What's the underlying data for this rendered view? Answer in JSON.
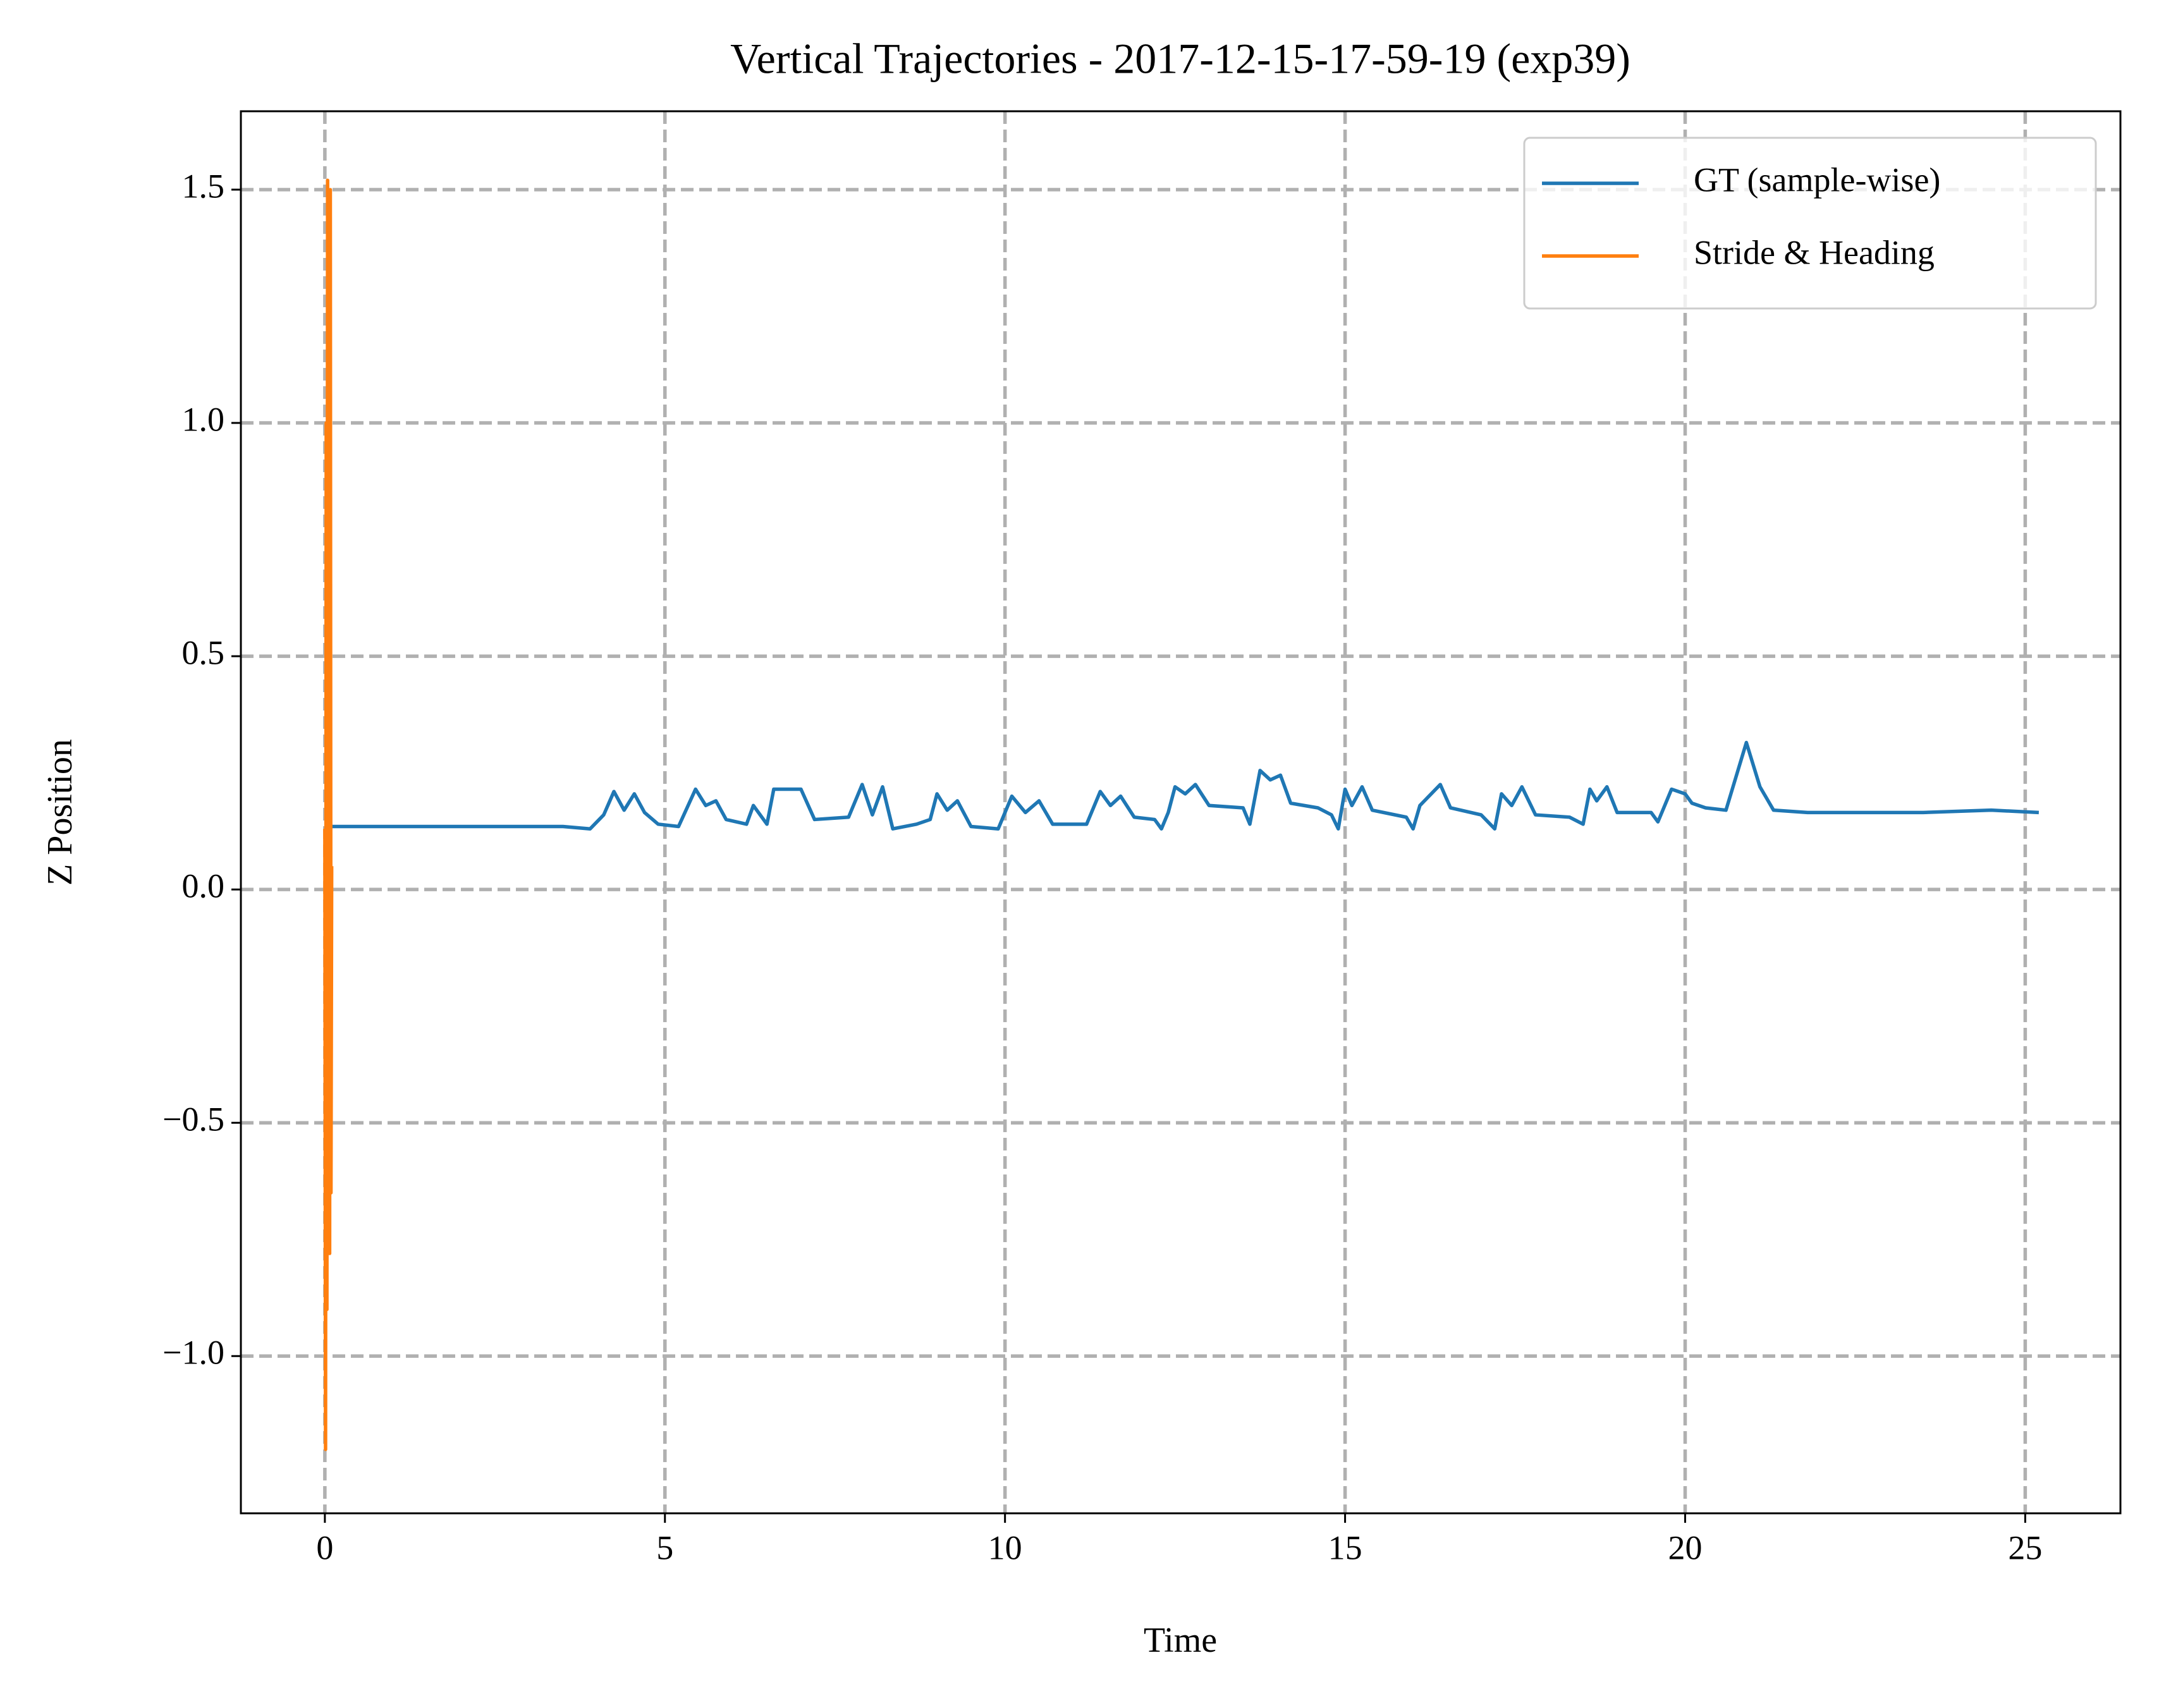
{
  "chart_data": {
    "type": "line",
    "title": "Vertical Trajectories - 2017-12-15-17-59-19 (exp39)",
    "xlabel": "Time",
    "ylabel": "Z Position",
    "xlim": [
      -1.235,
      26.4
    ],
    "ylim": [
      -1.337,
      1.668
    ],
    "xticks": [
      0,
      5,
      10,
      15,
      20,
      25
    ],
    "yticks": [
      {
        "value": -1.0,
        "label": "−1.0"
      },
      {
        "value": -0.5,
        "label": "−0.5"
      },
      {
        "value": 0.0,
        "label": "0.0"
      },
      0.5,
      {
        "value": 1.0,
        "label": "1.0"
      },
      1.5
    ],
    "grid": true,
    "legend": "upper right",
    "series": [
      {
        "name": "GT (sample-wise)",
        "color": "#1f77b4",
        "x": [
          0,
          3.5,
          3.9,
          4.1,
          4.25,
          4.4,
          4.55,
          4.7,
          4.9,
          5.2,
          5.45,
          5.6,
          5.75,
          5.9,
          6.2,
          6.3,
          6.5,
          6.6,
          7.0,
          7.2,
          7.7,
          7.9,
          8.05,
          8.2,
          8.35,
          8.7,
          8.9,
          9.0,
          9.15,
          9.3,
          9.5,
          9.9,
          10.1,
          10.3,
          10.5,
          10.7,
          11.2,
          11.4,
          11.55,
          11.7,
          11.9,
          12.2,
          12.3,
          12.4,
          12.5,
          12.65,
          12.8,
          13.0,
          13.5,
          13.6,
          13.75,
          13.9,
          14.05,
          14.2,
          14.6,
          14.8,
          14.9,
          15.0,
          15.1,
          15.25,
          15.4,
          15.9,
          16.0,
          16.1,
          16.4,
          16.55,
          17.0,
          17.2,
          17.3,
          17.45,
          17.6,
          17.8,
          18.3,
          18.5,
          18.6,
          18.7,
          18.85,
          19.0,
          19.5,
          19.6,
          19.8,
          20.0,
          20.1,
          20.3,
          20.6,
          20.9,
          21.1,
          21.3,
          21.8,
          22.5,
          23.5,
          24.5,
          25.2
        ],
        "values": [
          0.135,
          0.135,
          0.13,
          0.16,
          0.21,
          0.17,
          0.205,
          0.165,
          0.14,
          0.135,
          0.215,
          0.18,
          0.19,
          0.15,
          0.14,
          0.18,
          0.14,
          0.215,
          0.215,
          0.15,
          0.155,
          0.225,
          0.16,
          0.22,
          0.13,
          0.14,
          0.15,
          0.205,
          0.17,
          0.19,
          0.135,
          0.13,
          0.2,
          0.165,
          0.19,
          0.14,
          0.14,
          0.21,
          0.18,
          0.2,
          0.155,
          0.15,
          0.13,
          0.165,
          0.22,
          0.205,
          0.225,
          0.18,
          0.175,
          0.14,
          0.255,
          0.235,
          0.245,
          0.185,
          0.175,
          0.16,
          0.13,
          0.215,
          0.18,
          0.22,
          0.17,
          0.155,
          0.13,
          0.18,
          0.225,
          0.175,
          0.16,
          0.13,
          0.205,
          0.18,
          0.22,
          0.16,
          0.155,
          0.14,
          0.215,
          0.19,
          0.22,
          0.165,
          0.165,
          0.145,
          0.215,
          0.205,
          0.185,
          0.175,
          0.17,
          0.315,
          0.22,
          0.17,
          0.165,
          0.165,
          0.165,
          0.17,
          0.165
        ]
      },
      {
        "name": "Stride & Heading",
        "color": "#ff7f0e",
        "x": [
          0,
          0.01,
          0.02,
          0.03,
          0.04,
          0.05,
          0.06,
          0.07,
          0.08,
          0.09,
          0.1
        ],
        "values": [
          0.13,
          -1.2,
          1.0,
          -0.9,
          1.52,
          -0.7,
          1.3,
          -0.78,
          1.5,
          -0.65,
          0.05
        ]
      }
    ]
  }
}
